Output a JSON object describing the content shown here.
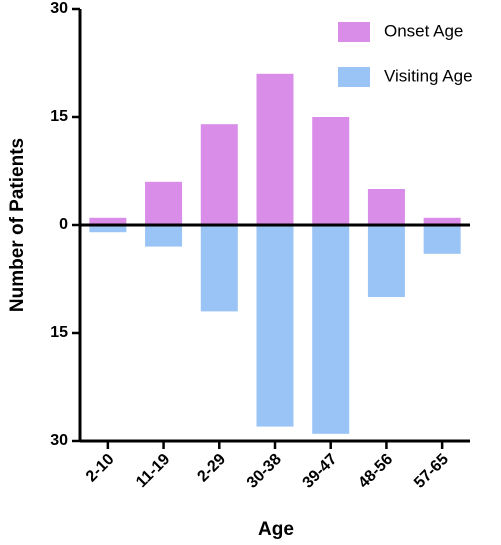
{
  "chart_data": {
    "type": "bar",
    "x_label": "Age",
    "y_label": "Number of Patients",
    "categories": [
      "2-10",
      "11-19",
      "2-29",
      "30-38",
      "39-47",
      "48-56",
      "57-65"
    ],
    "series": [
      {
        "name": "Onset Age",
        "color": "#d98ce8",
        "values": [
          1,
          6,
          14,
          21,
          15,
          5,
          1
        ]
      },
      {
        "name": "Visiting Age",
        "color": "#99c4f5",
        "values": [
          -1,
          -3,
          -12,
          -28,
          -29,
          -10,
          -4
        ]
      }
    ],
    "ylim": [
      -30,
      30
    ],
    "yticks": [
      {
        "value": -30,
        "label": "30"
      },
      {
        "value": -15,
        "label": "15"
      },
      0,
      15,
      30
    ]
  }
}
